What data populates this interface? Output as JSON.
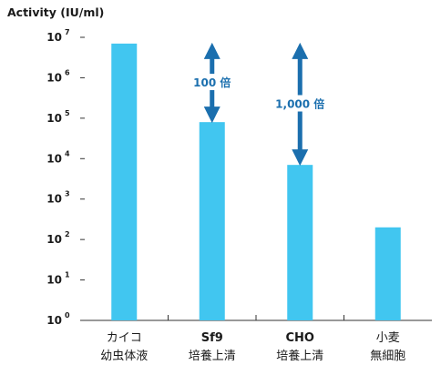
{
  "chart_data": {
    "type": "bar",
    "ylabel": "Activity (IU/ml)",
    "yscale": "log",
    "ylim": [
      1,
      10000000
    ],
    "yticks": [
      {
        "base": "10",
        "exp": "0"
      },
      {
        "base": "10",
        "exp": "1"
      },
      {
        "base": "10",
        "exp": "2"
      },
      {
        "base": "10",
        "exp": "3"
      },
      {
        "base": "10",
        "exp": "4"
      },
      {
        "base": "10",
        "exp": "5"
      },
      {
        "base": "10",
        "exp": "6"
      },
      {
        "base": "10",
        "exp": "7"
      }
    ],
    "categories": [
      {
        "line1": "カイコ",
        "line2": "幼虫体液",
        "line1_bold": false
      },
      {
        "line1": "Sf9",
        "line2": "培養上清",
        "line1_bold": true
      },
      {
        "line1": "CHO",
        "line2": "培養上清",
        "line1_bold": true
      },
      {
        "line1": "小麦",
        "line2": "無細胞",
        "line1_bold": false
      }
    ],
    "values": [
      7000000,
      80000,
      7000,
      200
    ],
    "annotations": [
      {
        "label": "100 倍",
        "between": [
          0,
          1
        ]
      },
      {
        "label": "1,000 倍",
        "between": [
          0,
          2
        ]
      }
    ],
    "grid": false,
    "colors": {
      "bar": "#41c6f0",
      "arrow": "#1b6fae",
      "annotation_text": "#1b6fae",
      "axis": "#333333"
    }
  }
}
